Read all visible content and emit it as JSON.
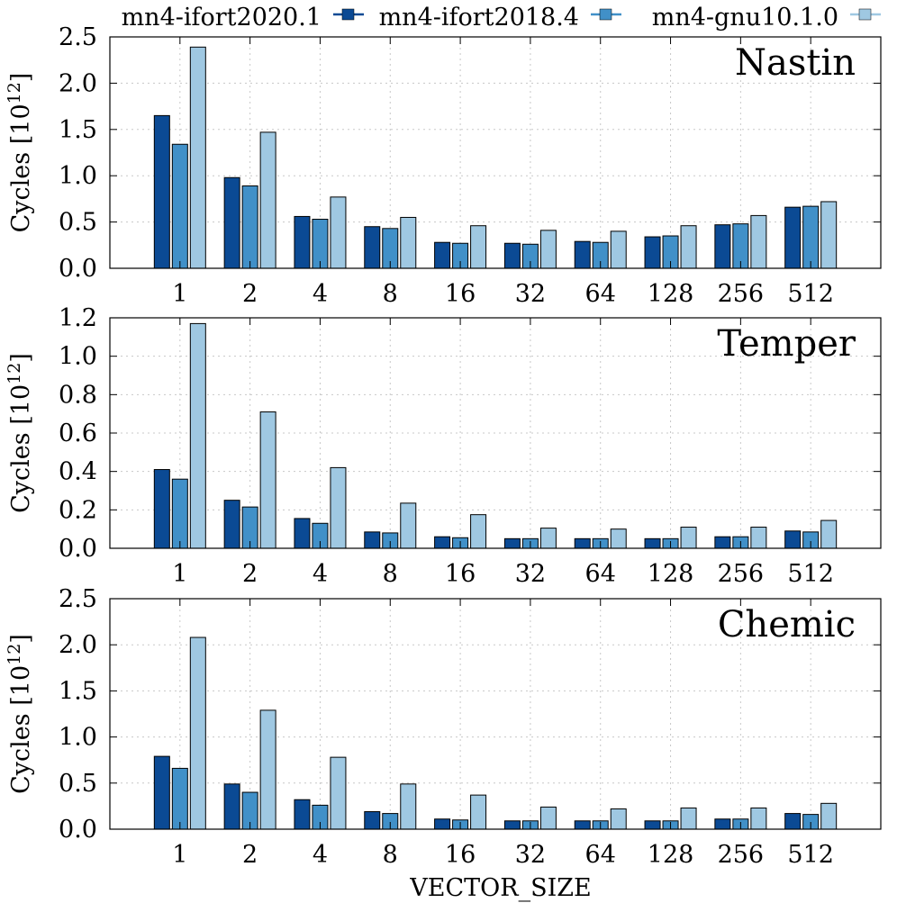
{
  "legend": [
    {
      "label": "mn4-ifort2020.1",
      "color": "#0b4a94"
    },
    {
      "label": "mn4-ifort2018.4",
      "color": "#4190c8"
    },
    {
      "label": "mn4-gnu10.1.0",
      "color": "#9fc8e2"
    }
  ],
  "xlabel": "VECTOR_SIZE",
  "ylabel_main": "Cycles [10",
  "ylabel_exp": "12",
  "ylabel_close": "]",
  "chart_data": [
    {
      "type": "bar",
      "title": "Nastin",
      "categories": [
        "1",
        "2",
        "4",
        "8",
        "16",
        "32",
        "64",
        "128",
        "256",
        "512"
      ],
      "ylim": [
        0,
        2.5
      ],
      "yticks": [
        "0.0",
        "0.5",
        "1.0",
        "1.5",
        "2.0",
        "2.5"
      ],
      "ytick_values": [
        0,
        0.5,
        1.0,
        1.5,
        2.0,
        2.5
      ],
      "series": [
        {
          "name": "mn4-ifort2020.1",
          "values": [
            1.65,
            0.98,
            0.56,
            0.45,
            0.28,
            0.27,
            0.29,
            0.34,
            0.47,
            0.66
          ]
        },
        {
          "name": "mn4-ifort2018.4",
          "values": [
            1.34,
            0.89,
            0.53,
            0.43,
            0.27,
            0.26,
            0.28,
            0.35,
            0.48,
            0.67
          ]
        },
        {
          "name": "mn4-gnu10.1.0",
          "values": [
            2.39,
            1.47,
            0.77,
            0.55,
            0.46,
            0.41,
            0.4,
            0.46,
            0.57,
            0.72
          ]
        }
      ]
    },
    {
      "type": "bar",
      "title": "Temper",
      "categories": [
        "1",
        "2",
        "4",
        "8",
        "16",
        "32",
        "64",
        "128",
        "256",
        "512"
      ],
      "ylim": [
        0,
        1.2
      ],
      "yticks": [
        "0.0",
        "0.2",
        "0.4",
        "0.6",
        "0.8",
        "1.0",
        "1.2"
      ],
      "ytick_values": [
        0,
        0.2,
        0.4,
        0.6,
        0.8,
        1.0,
        1.2
      ],
      "series": [
        {
          "name": "mn4-ifort2020.1",
          "values": [
            0.41,
            0.25,
            0.155,
            0.085,
            0.06,
            0.05,
            0.05,
            0.05,
            0.06,
            0.09
          ]
        },
        {
          "name": "mn4-ifort2018.4",
          "values": [
            0.36,
            0.215,
            0.13,
            0.08,
            0.055,
            0.05,
            0.05,
            0.05,
            0.06,
            0.085
          ]
        },
        {
          "name": "mn4-gnu10.1.0",
          "values": [
            1.17,
            0.71,
            0.42,
            0.235,
            0.175,
            0.105,
            0.1,
            0.11,
            0.11,
            0.145
          ]
        }
      ]
    },
    {
      "type": "bar",
      "title": "Chemic",
      "categories": [
        "1",
        "2",
        "4",
        "8",
        "16",
        "32",
        "64",
        "128",
        "256",
        "512"
      ],
      "ylim": [
        0,
        2.5
      ],
      "yticks": [
        "0.0",
        "0.5",
        "1.0",
        "1.5",
        "2.0",
        "2.5"
      ],
      "ytick_values": [
        0,
        0.5,
        1.0,
        1.5,
        2.0,
        2.5
      ],
      "series": [
        {
          "name": "mn4-ifort2020.1",
          "values": [
            0.79,
            0.49,
            0.32,
            0.19,
            0.11,
            0.09,
            0.09,
            0.09,
            0.11,
            0.17
          ]
        },
        {
          "name": "mn4-ifort2018.4",
          "values": [
            0.66,
            0.4,
            0.26,
            0.17,
            0.1,
            0.09,
            0.09,
            0.09,
            0.11,
            0.16
          ]
        },
        {
          "name": "mn4-gnu10.1.0",
          "values": [
            2.08,
            1.29,
            0.78,
            0.49,
            0.37,
            0.24,
            0.22,
            0.23,
            0.23,
            0.28
          ]
        }
      ]
    }
  ]
}
